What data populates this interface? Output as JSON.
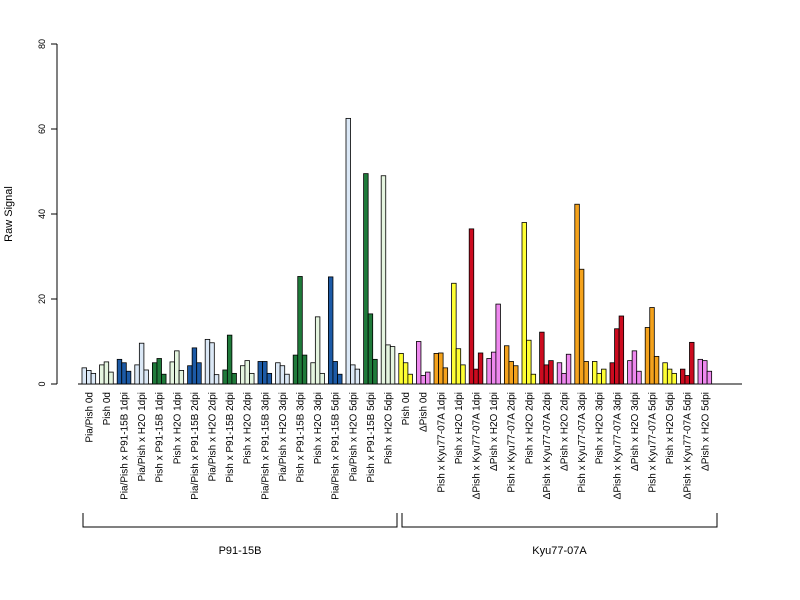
{
  "chart_data": {
    "type": "bar",
    "title": "",
    "xlabel": "",
    "ylabel": "Raw Signal",
    "ylim": [
      0,
      80
    ],
    "yticks": [
      0,
      20,
      40,
      60,
      80
    ],
    "grid": false,
    "legend": "none",
    "categories": [
      {
        "label": "Pia/Pish 0d",
        "color": "#dbe8f6",
        "values": [
          3.8,
          3.2,
          2.5
        ]
      },
      {
        "label": "Pish 0d",
        "color": "#e5f5e0",
        "values": [
          4.5,
          5.2,
          2.8
        ]
      },
      {
        "label": "Pia/Pish x P91-15B 1dpi",
        "color": "#1c5aa6",
        "values": [
          5.8,
          5.0,
          3.0
        ]
      },
      {
        "label": "Pia/Pish x H2O 1dpi",
        "color": "#dbe8f6",
        "values": [
          4.5,
          9.6,
          3.3
        ]
      },
      {
        "label": "Pish x P91-15B 1dpi",
        "color": "#1f7a3a",
        "values": [
          5.0,
          6.0,
          2.3
        ]
      },
      {
        "label": "Pish x H2O 1dpi",
        "color": "#e5f5e0",
        "values": [
          5.2,
          7.8,
          3.2
        ]
      },
      {
        "label": "Pia/Pish x P91-15B 2dpi",
        "color": "#1c5aa6",
        "values": [
          4.3,
          8.5,
          5.0
        ]
      },
      {
        "label": "Pia/Pish x H2O 2dpi",
        "color": "#dbe8f6",
        "values": [
          10.5,
          9.7,
          2.2
        ]
      },
      {
        "label": "Pish x P91-15B 2dpi",
        "color": "#1f7a3a",
        "values": [
          3.3,
          11.5,
          2.5
        ]
      },
      {
        "label": "Pish x H2O 2dpi",
        "color": "#e5f5e0",
        "values": [
          4.3,
          5.5,
          2.5
        ]
      },
      {
        "label": "Pia/Pish x P91-15B 3dpi",
        "color": "#1c5aa6",
        "values": [
          5.3,
          5.3,
          2.5
        ]
      },
      {
        "label": "Pia/Pish x H2O 3dpi",
        "color": "#dbe8f6",
        "values": [
          5.0,
          4.3,
          2.3
        ]
      },
      {
        "label": "Pish x P91-15B 3dpi",
        "color": "#1f7a3a",
        "values": [
          6.8,
          25.3,
          6.8
        ]
      },
      {
        "label": "Pish x H2O 3dpi",
        "color": "#e5f5e0",
        "values": [
          5.0,
          15.8,
          2.5
        ]
      },
      {
        "label": "Pia/Pish x P91-15B 5dpi",
        "color": "#1c5aa6",
        "values": [
          25.2,
          5.3,
          2.3
        ]
      },
      {
        "label": "Pia/Pish x H2O 5dpi",
        "color": "#dbe8f6",
        "values": [
          62.5,
          4.5,
          3.5
        ]
      },
      {
        "label": "Pish x P91-15B 5dpi",
        "color": "#1f7a3a",
        "values": [
          49.5,
          16.5,
          5.8
        ]
      },
      {
        "label": "Pish x H2O 5dpi",
        "color": "#e5f5e0",
        "values": [
          49.0,
          9.2,
          8.8
        ]
      },
      {
        "label": "Pish 0d",
        "color": "#ffff33",
        "values": [
          7.2,
          5.0,
          2.3
        ]
      },
      {
        "label": "ΔPish 0d",
        "color": "#ee88ee",
        "values": [
          10.0,
          2.0,
          2.8
        ]
      },
      {
        "label": "Pish x Kyu77-07A 1dpi",
        "color": "#f4a21c",
        "values": [
          7.2,
          7.3,
          3.8
        ]
      },
      {
        "label": "Pish x H2O 1dpi",
        "color": "#ffff33",
        "values": [
          23.7,
          8.3,
          4.5
        ]
      },
      {
        "label": "ΔPish x Kyu77-07A 1dpi",
        "color": "#cc0b1f",
        "values": [
          36.5,
          3.5,
          7.3
        ]
      },
      {
        "label": "ΔPish x H2O 1dpi",
        "color": "#ee88ee",
        "values": [
          6.0,
          7.5,
          18.8
        ]
      },
      {
        "label": "Pish x Kyu77-07A 2dpi",
        "color": "#f4a21c",
        "values": [
          9.0,
          5.3,
          4.3
        ]
      },
      {
        "label": "Pish x H2O 2dpi",
        "color": "#ffff33",
        "values": [
          38.0,
          10.3,
          2.3
        ]
      },
      {
        "label": "ΔPish x Kyu77-07A 2dpi",
        "color": "#cc0b1f",
        "values": [
          12.2,
          4.5,
          5.5
        ]
      },
      {
        "label": "ΔPish x H2O 2dpi",
        "color": "#ee88ee",
        "values": [
          5.0,
          2.5,
          7.0
        ]
      },
      {
        "label": "Pish x Kyu77-07A 3dpi",
        "color": "#f4a21c",
        "values": [
          42.3,
          27.0,
          5.3
        ]
      },
      {
        "label": "Pish x H2O 3dpi",
        "color": "#ffff33",
        "values": [
          5.3,
          2.5,
          3.5
        ]
      },
      {
        "label": "ΔPish x Kyu77-07A 3dpi",
        "color": "#cc0b1f",
        "values": [
          5.0,
          13.0,
          16.0
        ]
      },
      {
        "label": "ΔPish x H2O 3dpi",
        "color": "#ee88ee",
        "values": [
          5.5,
          7.8,
          3.0
        ]
      },
      {
        "label": "Pish x Kyu77-07A 5dpi",
        "color": "#f4a21c",
        "values": [
          13.3,
          18.0,
          6.5
        ]
      },
      {
        "label": "Pish x H2O 5dpi",
        "color": "#ffff33",
        "values": [
          5.0,
          3.5,
          2.5
        ]
      },
      {
        "label": "ΔPish x Kyu77-07A 5dpi",
        "color": "#cc0b1f",
        "values": [
          3.5,
          2.0,
          9.8
        ]
      },
      {
        "label": "ΔPish x H2O 5dpi",
        "color": "#ee88ee",
        "values": [
          5.8,
          5.5,
          3.0
        ]
      }
    ],
    "groups": [
      {
        "label": "P91-15B",
        "first_category": 0,
        "last_category": 17
      },
      {
        "label": "Kyu77-07A",
        "first_category": 18,
        "last_category": 35
      }
    ]
  }
}
